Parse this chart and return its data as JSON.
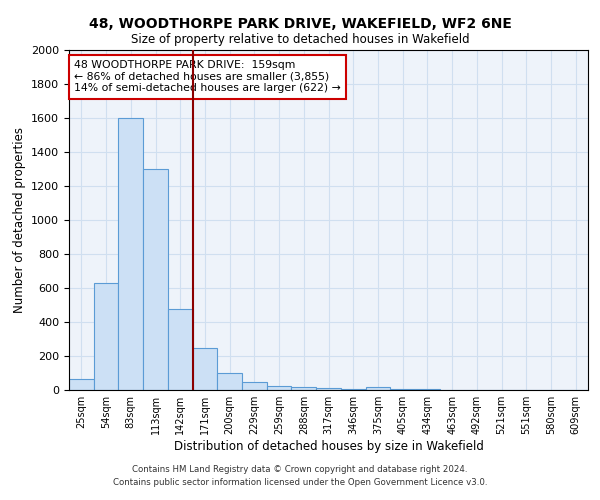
{
  "title": "48, WOODTHORPE PARK DRIVE, WAKEFIELD, WF2 6NE",
  "subtitle": "Size of property relative to detached houses in Wakefield",
  "xlabel": "Distribution of detached houses by size in Wakefield",
  "ylabel": "Number of detached properties",
  "bar_labels": [
    "25sqm",
    "54sqm",
    "83sqm",
    "113sqm",
    "142sqm",
    "171sqm",
    "200sqm",
    "229sqm",
    "259sqm",
    "288sqm",
    "317sqm",
    "346sqm",
    "375sqm",
    "405sqm",
    "434sqm",
    "463sqm",
    "492sqm",
    "521sqm",
    "551sqm",
    "580sqm",
    "609sqm"
  ],
  "bar_values": [
    65,
    630,
    1600,
    1300,
    475,
    250,
    100,
    50,
    25,
    20,
    10,
    5,
    15,
    5,
    5,
    0,
    0,
    0,
    0,
    0,
    0
  ],
  "bar_color": "#cce0f5",
  "bar_edgecolor": "#5b9bd5",
  "grid_color": "#d0dff0",
  "background_color": "#eef3fa",
  "vline_x_index": 5,
  "vline_color": "#8b0000",
  "annotation_line1": "48 WOODTHORPE PARK DRIVE:  159sqm",
  "annotation_line2": "← 86% of detached houses are smaller (3,855)",
  "annotation_line3": "14% of semi-detached houses are larger (622) →",
  "annotation_box_edgecolor": "#cc0000",
  "annotation_box_facecolor": "#ffffff",
  "ylim": [
    0,
    2000
  ],
  "yticks": [
    0,
    200,
    400,
    600,
    800,
    1000,
    1200,
    1400,
    1600,
    1800,
    2000
  ],
  "footnote1": "Contains HM Land Registry data © Crown copyright and database right 2024.",
  "footnote2": "Contains public sector information licensed under the Open Government Licence v3.0."
}
